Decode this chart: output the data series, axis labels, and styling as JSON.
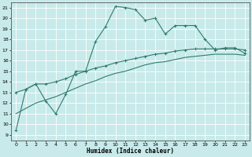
{
  "title": "",
  "xlabel": "Humidex (Indice chaleur)",
  "bg_color": "#c8eaea",
  "line_color": "#2e7d6e",
  "grid_color": "#ffffff",
  "xlim": [
    -0.5,
    23.5
  ],
  "ylim": [
    8.5,
    21.5
  ],
  "xticks": [
    0,
    1,
    2,
    3,
    4,
    5,
    6,
    7,
    8,
    9,
    10,
    11,
    12,
    13,
    14,
    15,
    16,
    17,
    18,
    19,
    20,
    21,
    22,
    23
  ],
  "yticks": [
    9,
    10,
    11,
    12,
    13,
    14,
    15,
    16,
    17,
    18,
    19,
    20,
    21
  ],
  "line1_x": [
    0,
    1,
    2,
    3,
    4,
    5,
    6,
    7,
    8,
    9,
    10,
    11,
    12,
    13,
    14,
    15,
    16,
    17,
    18,
    19,
    20,
    21,
    22,
    23
  ],
  "line1_y": [
    9.4,
    13.3,
    13.8,
    12.2,
    11.0,
    12.8,
    15.0,
    15.0,
    17.8,
    19.2,
    21.1,
    21.0,
    20.8,
    19.8,
    20.0,
    18.5,
    19.3,
    19.3,
    19.3,
    18.0,
    17.0,
    17.2,
    17.2,
    16.7
  ],
  "line2_x": [
    0,
    1,
    2,
    3,
    4,
    5,
    6,
    7,
    8,
    9,
    10,
    11,
    12,
    13,
    14,
    15,
    16,
    17,
    18,
    19,
    20,
    21,
    22,
    23
  ],
  "line2_y": [
    13.0,
    13.3,
    13.8,
    13.8,
    14.0,
    14.3,
    14.7,
    15.0,
    15.3,
    15.5,
    15.8,
    16.0,
    16.2,
    16.4,
    16.6,
    16.7,
    16.9,
    17.0,
    17.1,
    17.1,
    17.1,
    17.1,
    17.1,
    17.0
  ],
  "line3_x": [
    0,
    1,
    2,
    3,
    4,
    5,
    6,
    7,
    8,
    9,
    10,
    11,
    12,
    13,
    14,
    15,
    16,
    17,
    18,
    19,
    20,
    21,
    22,
    23
  ],
  "line3_y": [
    11.0,
    11.5,
    12.0,
    12.3,
    12.6,
    13.0,
    13.4,
    13.8,
    14.1,
    14.5,
    14.8,
    15.0,
    15.3,
    15.6,
    15.8,
    15.9,
    16.1,
    16.3,
    16.4,
    16.5,
    16.6,
    16.6,
    16.6,
    16.5
  ]
}
